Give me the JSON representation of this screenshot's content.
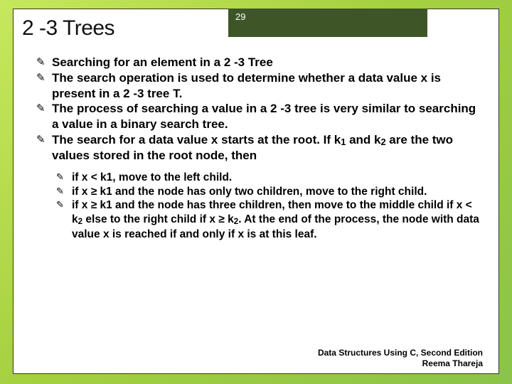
{
  "slide": {
    "title": "2 -3 Trees",
    "page_number": "29",
    "bullets_level1": [
      "Searching for an element in a 2 -3 Tree",
      "The search operation is used to determine whether a data value x is present in a 2 -3 tree T.",
      "The process of searching a value in a 2 -3 tree is very similar to searching a value in a binary search tree.",
      "The search for a data value x starts at the root. If k|1| and k|2| are the two values stored in the root node, then"
    ],
    "bullets_level2": [
      "if x < k1, move to the left child.",
      "if x ≥ k1 and the node has only two children, move to the right child.",
      "if x ≥ k1 and the node has three children, then move to the middle child if x < k|2| else to the right child if x ≥ k|2|. At the end of the process, the node with data value x is reached if and only if x is at this leaf."
    ],
    "footer": {
      "line1": "Data Structures Using C, Second Edition",
      "line2": "Reema Thareja"
    }
  },
  "style": {
    "bg_gradient_from": "#c7e85c",
    "bg_gradient_to": "#8bc34a",
    "pagenum_bg": "#3e5627",
    "bullet_glyph": "✎"
  }
}
